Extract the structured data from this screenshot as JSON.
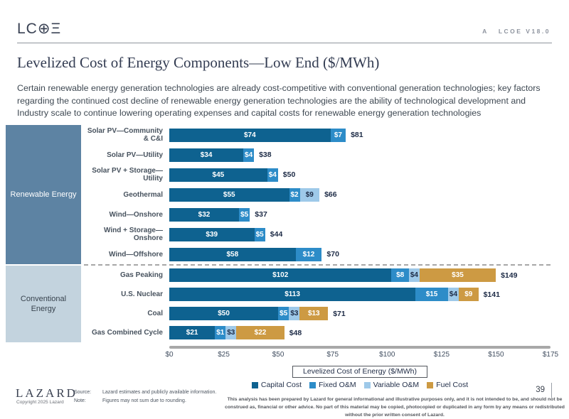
{
  "header": {
    "logo_text": "LC⊕Ξ",
    "corner_label_a": "A",
    "corner_label_version": "LCOE V18.0"
  },
  "title": "Levelized Cost of Energy Components—Low End ($/MWh)",
  "subtitle": "Certain renewable energy generation technologies are already cost-competitive with conventional generation technologies; key factors regarding the continued cost decline of renewable energy generation technologies are the ability of technological development and Industry scale to continue lowering operating expenses and capital costs for renewable energy generation technologies",
  "chart_data": {
    "type": "bar",
    "orientation": "horizontal",
    "stacked": true,
    "xlabel": "Levelized Cost of Energy ($/MWh)",
    "xlim": [
      0,
      175
    ],
    "tick_step": 25,
    "x_ticks": [
      "$0",
      "$25",
      "$50",
      "$75",
      "$100",
      "$125",
      "$150",
      "$175"
    ],
    "legend_position": "bottom",
    "legend": [
      {
        "name": "Capital Cost",
        "color": "#0e6290",
        "label_color": "#ffffff"
      },
      {
        "name": "Fixed O&M",
        "color": "#2d8cc8",
        "label_color": "#ffffff"
      },
      {
        "name": "Variable O&M",
        "color": "#9ec9e9",
        "label_color": "#1d2b46"
      },
      {
        "name": "Fuel Cost",
        "color": "#cd9a43",
        "label_color": "#ffffff"
      }
    ],
    "groups": [
      {
        "label": "Renewable Energy",
        "color": "#5d83a3",
        "text_color": "#ffffff",
        "rows": [
          {
            "label": "Solar PV—Community & C&I",
            "total": 81,
            "total_label": "$81",
            "segments": [
              {
                "series": "Capital Cost",
                "value": 74,
                "label": "$74"
              },
              {
                "series": "Fixed O&M",
                "value": 7,
                "label": "$7"
              }
            ]
          },
          {
            "label": "Solar PV—Utility",
            "total": 38,
            "total_label": "$38",
            "segments": [
              {
                "series": "Capital Cost",
                "value": 34,
                "label": "$34"
              },
              {
                "series": "Fixed O&M",
                "value": 4,
                "label": "$4"
              }
            ]
          },
          {
            "label": "Solar PV + Storage—Utility",
            "total": 50,
            "total_label": "$50",
            "segments": [
              {
                "series": "Capital Cost",
                "value": 45,
                "label": "$45"
              },
              {
                "series": "Fixed O&M",
                "value": 4,
                "label": "$4"
              }
            ]
          },
          {
            "label": "Geothermal",
            "total": 66,
            "total_label": "$66",
            "segments": [
              {
                "series": "Capital Cost",
                "value": 55,
                "label": "$55"
              },
              {
                "series": "Fixed O&M",
                "value": 2,
                "label": "$2"
              },
              {
                "series": "Variable O&M",
                "value": 9,
                "label": "$9"
              }
            ]
          },
          {
            "label": "Wind—Onshore",
            "total": 37,
            "total_label": "$37",
            "segments": [
              {
                "series": "Capital Cost",
                "value": 32,
                "label": "$32"
              },
              {
                "series": "Fixed O&M",
                "value": 5,
                "label": "$5"
              }
            ]
          },
          {
            "label": "Wind + Storage—Onshore",
            "total": 44,
            "total_label": "$44",
            "segments": [
              {
                "series": "Capital Cost",
                "value": 39,
                "label": "$39"
              },
              {
                "series": "Fixed O&M",
                "value": 5,
                "label": "$5"
              }
            ]
          },
          {
            "label": "Wind—Offshore",
            "total": 70,
            "total_label": "$70",
            "segments": [
              {
                "series": "Capital Cost",
                "value": 58,
                "label": "$58"
              },
              {
                "series": "Fixed O&M",
                "value": 12,
                "label": "$12"
              }
            ]
          }
        ]
      },
      {
        "label": "Conventional Energy",
        "color": "#c3d3de",
        "text_color": "#38434e",
        "rows": [
          {
            "label": "Gas Peaking",
            "total": 149,
            "total_label": "$149",
            "segments": [
              {
                "series": "Capital Cost",
                "value": 102,
                "label": "$102"
              },
              {
                "series": "Fixed O&M",
                "value": 8,
                "label": "$8"
              },
              {
                "series": "Variable O&M",
                "value": 4,
                "label": "$4"
              },
              {
                "series": "Fuel Cost",
                "value": 35,
                "label": "$35"
              }
            ]
          },
          {
            "label": "U.S. Nuclear",
            "total": 141,
            "total_label": "$141",
            "segments": [
              {
                "series": "Capital Cost",
                "value": 113,
                "label": "$113"
              },
              {
                "series": "Fixed O&M",
                "value": 15,
                "label": "$15"
              },
              {
                "series": "Variable O&M",
                "value": 4,
                "label": "$4"
              },
              {
                "series": "Fuel Cost",
                "value": 9,
                "label": "$9"
              }
            ]
          },
          {
            "label": "Coal",
            "total": 71,
            "total_label": "$71",
            "segments": [
              {
                "series": "Capital Cost",
                "value": 50,
                "label": "$50"
              },
              {
                "series": "Fixed O&M",
                "value": 5,
                "label": "$5"
              },
              {
                "series": "Variable O&M",
                "value": 3,
                "label": "$3"
              },
              {
                "series": "Fuel Cost",
                "value": 13,
                "label": "$13"
              }
            ]
          },
          {
            "label": "Gas Combined Cycle",
            "total": 48,
            "total_label": "$48",
            "segments": [
              {
                "series": "Capital Cost",
                "value": 21,
                "label": "$21"
              },
              {
                "series": "Fixed O&M",
                "value": 1,
                "label": "$1"
              },
              {
                "series": "Variable O&M",
                "value": 3,
                "label": "$3"
              },
              {
                "series": "Fuel Cost",
                "value": 22,
                "label": "$22"
              }
            ]
          }
        ]
      }
    ]
  },
  "footer": {
    "lazard_logo": "LAZARD",
    "copyright": "Copyright 2025 Lazard",
    "source_label": "Source:",
    "source_text": "Lazard estimates and publicly available information.",
    "note_label": "Note:",
    "note_text": "Figures may not sum due to rounding.",
    "page_number": "39",
    "disclaimer": "This analysis has been prepared by Lazard for general informational and illustrative purposes only, and it is not intended to be, and should not be construed as, financial or other advice. No part of this material may be copied, photocopied or duplicated in any form by any means or redistributed without the prior written consent of Lazard."
  }
}
